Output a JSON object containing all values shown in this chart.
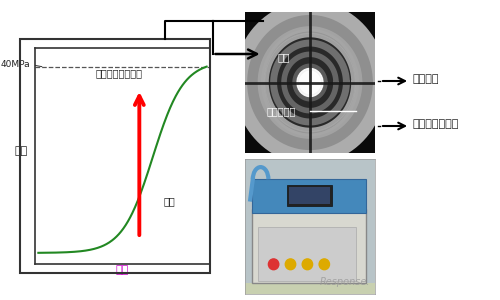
{
  "label_40MPa": "40MPa",
  "label_suiso_co2": "水素十二酸化炭素",
  "label_gisan": "ギ酸",
  "label_jikan": "時間",
  "label_atsuryoku": "圧力",
  "label_suiso": "水素",
  "label_niso": "二酸化炭素",
  "label_koatsu": "高圧水素",
  "label_ekika": "液化二酸化炭素",
  "label_response": "Response.",
  "bg_color": "#ffffff",
  "graph_line_color": "#228822",
  "arrow_color": "#ff0000",
  "dashed_color": "#555555",
  "box_border_color": "#333333",
  "font_size_small": 7,
  "font_size_axis": 8,
  "font_size_label": 8
}
